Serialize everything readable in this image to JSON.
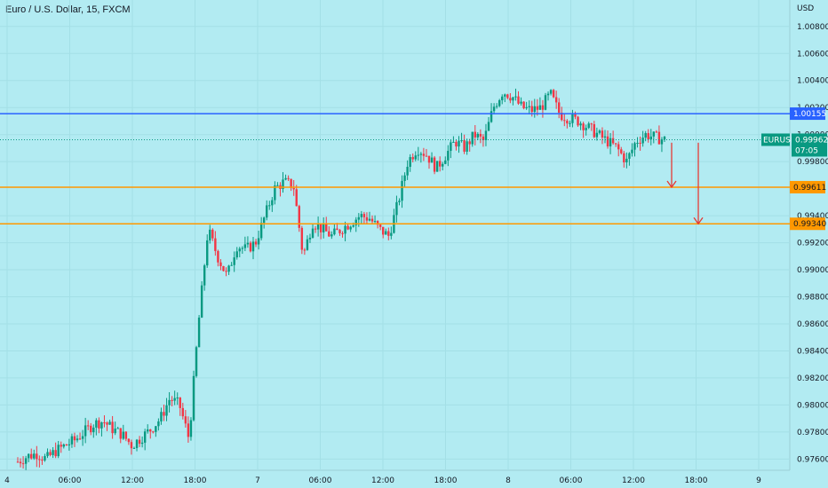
{
  "header": {
    "title": "Euro / U.S. Dollar, 15, FXCM"
  },
  "chart_data": {
    "type": "candlestick",
    "title": "Euro / U.S. Dollar, 15, FXCM",
    "currency_label": "USD",
    "y_ticks": [
      "1.00800",
      "1.00600",
      "1.00400",
      "1.00200",
      "1.00000",
      "0.99800",
      "0.99400",
      "0.99200",
      "0.99000",
      "0.98800",
      "0.98600",
      "0.98400",
      "0.98200",
      "0.98000",
      "0.97800",
      "0.97600"
    ],
    "x_ticks": [
      "4",
      "06:00",
      "12:00",
      "18:00",
      "7",
      "06:00",
      "12:00",
      "18:00",
      "8",
      "06:00",
      "12:00",
      "18:00",
      "9"
    ],
    "ylim": [
      0.9753,
      1.0093
    ],
    "grid": true,
    "horizontal_lines": [
      {
        "name": "1.00155",
        "value": 1.00155,
        "color": "#2962ff"
      },
      {
        "name": "0.99611",
        "value": 0.99611,
        "color": "#ff9800"
      },
      {
        "name": "0.99340",
        "value": 0.9934,
        "color": "#ff9800"
      }
    ],
    "current_price": {
      "symbol": "EURUSD",
      "value": "0.99962",
      "countdown": "07:05",
      "color": "#089981"
    },
    "price_path": [
      0.9758,
      0.9762,
      0.9764,
      0.976,
      0.9766,
      0.977,
      0.9774,
      0.978,
      0.9786,
      0.9788,
      0.9782,
      0.9778,
      0.977,
      0.9776,
      0.9782,
      0.979,
      0.9805,
      0.98,
      0.9775,
      0.986,
      0.993,
      0.991,
      0.9895,
      0.9918,
      0.9915,
      0.992,
      0.994,
      0.996,
      0.9965,
      0.9962,
      0.991,
      0.9935,
      0.993,
      0.9925,
      0.993,
      0.9935,
      0.994,
      0.9938,
      0.993,
      0.9925,
      0.995,
      0.998,
      0.999,
      0.9985,
      0.9975,
      0.9985,
      0.9995,
      0.999,
      1.0,
      0.9995,
      1.002,
      1.0032,
      1.0028,
      1.002,
      1.0018,
      1.002,
      1.003,
      1.0015,
      1.0012,
      1.001,
      1.0005,
      1.0,
      0.9995,
      0.999,
      0.998,
      0.9995,
      1.0,
      0.9998,
      0.99962
    ],
    "annotations": [
      {
        "type": "arrow-down",
        "from": 0.9994,
        "to": 0.99611,
        "color": "#e53935"
      },
      {
        "type": "arrow-down",
        "from": 0.9994,
        "to": 0.9934,
        "color": "#e53935"
      }
    ]
  }
}
